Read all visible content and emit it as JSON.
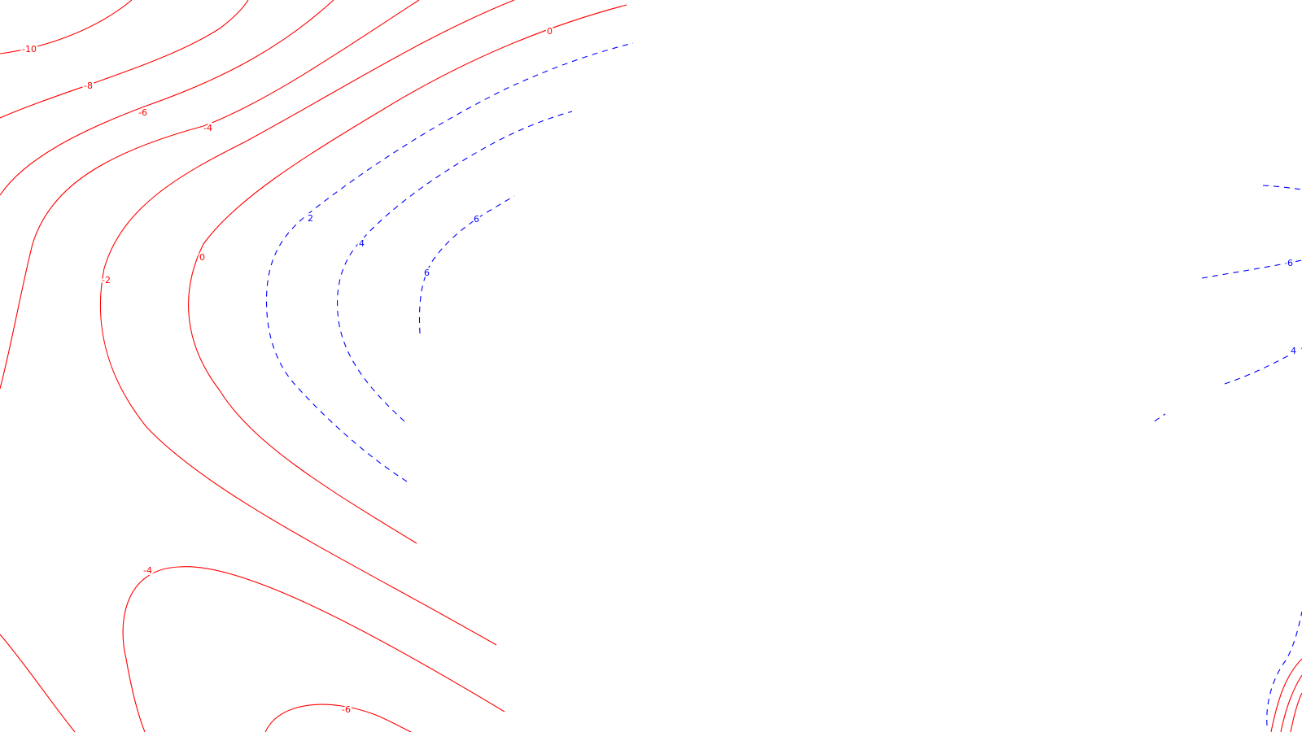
{
  "map": {
    "colors": {
      "negative": "#ff0000",
      "positive": "#0000ff",
      "background": "#ffffff"
    },
    "contour_labels": [
      {
        "id": "label-neg10",
        "text": "-10",
        "value": -10
      },
      {
        "id": "label-neg8",
        "text": "-8",
        "value": -8
      },
      {
        "id": "label-neg6-upper",
        "text": "-6",
        "value": -6
      },
      {
        "id": "label-neg4-upper",
        "text": "-4",
        "value": -4
      },
      {
        "id": "label-zero-top",
        "text": "0",
        "value": 0
      },
      {
        "id": "label-neg2",
        "text": "-2",
        "value": -2
      },
      {
        "id": "label-zero-left",
        "text": "0",
        "value": 0
      },
      {
        "id": "label-pos2",
        "text": "2",
        "value": 2
      },
      {
        "id": "label-pos4",
        "text": "4",
        "value": 4
      },
      {
        "id": "label-pos6",
        "text": "6",
        "value": 6
      },
      {
        "id": "label-pos6-inner",
        "text": "6",
        "value": 6
      },
      {
        "id": "label-neg4-lower",
        "text": "-4",
        "value": -4
      },
      {
        "id": "label-neg6-lower",
        "text": "-6",
        "value": -6
      },
      {
        "id": "label-right-6",
        "text": "6",
        "value": 6
      },
      {
        "id": "label-right-4",
        "text": "4",
        "value": 4
      }
    ]
  }
}
